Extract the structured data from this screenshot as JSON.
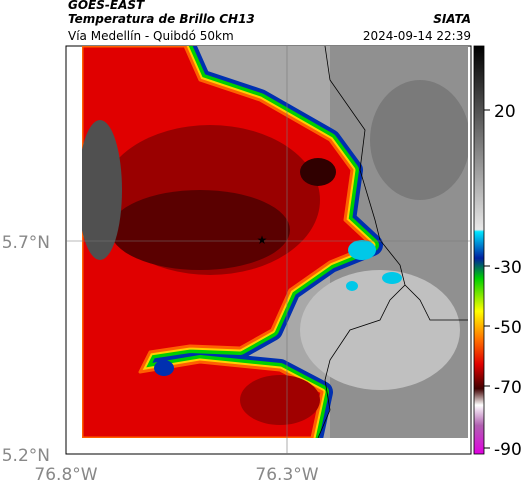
{
  "header": {
    "source": "GOES-EAST",
    "title": "Temperatura de Brillo CH13",
    "route": "Vía Medellín - Quibdó 50km",
    "brand": "SIATA",
    "timestamp": "2024-09-14 22:39"
  },
  "axes": {
    "lat_labels": [
      "5.7°N",
      "5.2°N"
    ],
    "lon_labels": [
      "76.8°W",
      "76.3°W"
    ]
  },
  "colorbar": {
    "labels": [
      "20",
      "-30",
      "-50",
      "-70",
      "-90"
    ]
  }
}
